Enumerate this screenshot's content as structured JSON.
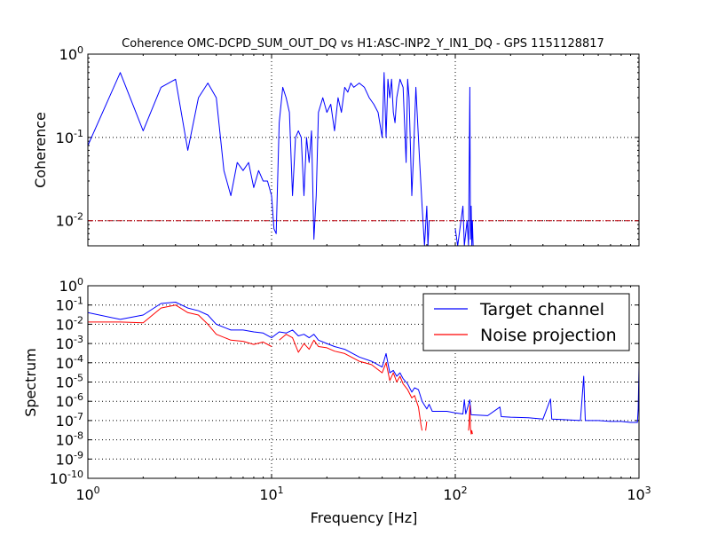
{
  "figure": {
    "title": "Coherence OMC-DCPD_SUM_OUT_DQ vs H1:ASC-INP2_Y_IN1_DQ - GPS 1151128817",
    "xlabel": "Frequency [Hz]"
  },
  "colors": {
    "target": "#0000ff",
    "noise": "#ff0000",
    "threshold": "#c0000c"
  },
  "chart_data": [
    {
      "type": "line",
      "panel": "coherence",
      "ylabel": "Coherence",
      "xscale": "log",
      "yscale": "log",
      "xlim": [
        1,
        1000
      ],
      "ylim": [
        0.005,
        1
      ],
      "grid": true,
      "yticks": [
        {
          "base": "10",
          "exp": "0",
          "v": 1
        },
        {
          "base": "10",
          "exp": "-1",
          "v": 0.1
        },
        {
          "base": "10",
          "exp": "-2",
          "v": 0.01
        }
      ],
      "xticks": [
        1,
        10,
        100,
        1000
      ],
      "threshold": 0.01,
      "series": [
        {
          "color": "#0000ff",
          "segments": [
            [
              [
                1,
                0.08
              ],
              [
                1.5,
                0.6
              ],
              [
                2,
                0.12
              ],
              [
                2.5,
                0.4
              ],
              [
                3,
                0.5
              ],
              [
                3.5,
                0.07
              ],
              [
                4,
                0.3
              ],
              [
                4.5,
                0.45
              ],
              [
                5,
                0.3
              ],
              [
                5.5,
                0.04
              ],
              [
                6,
                0.02
              ],
              [
                6.5,
                0.05
              ],
              [
                7,
                0.04
              ],
              [
                7.5,
                0.05
              ],
              [
                8,
                0.025
              ],
              [
                8.5,
                0.04
              ],
              [
                9,
                0.03
              ],
              [
                9.5,
                0.03
              ],
              [
                10,
                0.02
              ],
              [
                10.3,
                0.008
              ],
              [
                10.6,
                0.007
              ],
              [
                11,
                0.15
              ],
              [
                11.5,
                0.4
              ],
              [
                12,
                0.3
              ],
              [
                12.5,
                0.2
              ],
              [
                13,
                0.02
              ],
              [
                13.5,
                0.1
              ],
              [
                14,
                0.12
              ],
              [
                14.5,
                0.1
              ],
              [
                15,
                0.02
              ],
              [
                15.5,
                0.1
              ],
              [
                16,
                0.05
              ],
              [
                16.5,
                0.12
              ],
              [
                17,
                0.006
              ],
              [
                17.5,
                0.02
              ],
              [
                18,
                0.2
              ],
              [
                19,
                0.3
              ],
              [
                20,
                0.2
              ],
              [
                21,
                0.25
              ],
              [
                22,
                0.12
              ],
              [
                23,
                0.3
              ],
              [
                24,
                0.2
              ],
              [
                25,
                0.4
              ],
              [
                26,
                0.35
              ],
              [
                27,
                0.45
              ],
              [
                28,
                0.4
              ],
              [
                30,
                0.45
              ],
              [
                32,
                0.4
              ],
              [
                34,
                0.3
              ],
              [
                36,
                0.25
              ],
              [
                38,
                0.2
              ],
              [
                40,
                0.1
              ],
              [
                41,
                0.6
              ],
              [
                42,
                0.1
              ],
              [
                43,
                0.5
              ],
              [
                44,
                0.3
              ],
              [
                45,
                0.5
              ],
              [
                46,
                0.2
              ],
              [
                47,
                0.15
              ],
              [
                48,
                0.3
              ],
              [
                50,
                0.5
              ],
              [
                52,
                0.4
              ],
              [
                54,
                0.05
              ],
              [
                55,
                0.5
              ],
              [
                56,
                0.3
              ],
              [
                58,
                0.02
              ],
              [
                59,
                0.05
              ],
              [
                61,
                0.4
              ],
              [
                62,
                0.2
              ],
              [
                64,
                0.05
              ],
              [
                66,
                0.015
              ],
              [
                68,
                0.005
              ],
              [
                70,
                0.015
              ],
              [
                71,
                0.005
              ],
              [
                72,
                0.01
              ]
            ],
            [
              [
                100,
                0.008
              ],
              [
                103,
                0.005
              ],
              [
                110,
                0.015
              ],
              [
                112,
                0.005
              ],
              [
                116,
                0.01
              ],
              [
                118,
                0.005
              ],
              [
                120,
                0.4
              ],
              [
                121,
                0.006
              ],
              [
                122,
                0.015
              ],
              [
                123,
                0.005
              ],
              [
                124,
                0.01
              ],
              [
                125,
                0.005
              ]
            ]
          ]
        }
      ]
    },
    {
      "type": "line",
      "panel": "spectrum",
      "ylabel": "Spectrum",
      "xscale": "log",
      "yscale": "log",
      "xlim": [
        1,
        1000
      ],
      "ylim": [
        1e-10,
        1
      ],
      "grid": true,
      "yticks": [
        {
          "base": "10",
          "exp": "0",
          "v": 1
        },
        {
          "base": "10",
          "exp": "-1",
          "v": 0.1
        },
        {
          "base": "10",
          "exp": "-2",
          "v": 0.01
        },
        {
          "base": "10",
          "exp": "-3",
          "v": 0.001
        },
        {
          "base": "10",
          "exp": "-4",
          "v": 0.0001
        },
        {
          "base": "10",
          "exp": "-5",
          "v": 1e-05
        },
        {
          "base": "10",
          "exp": "-6",
          "v": 1e-06
        },
        {
          "base": "10",
          "exp": "-7",
          "v": 1e-07
        },
        {
          "base": "10",
          "exp": "-8",
          "v": 1e-08
        },
        {
          "base": "10",
          "exp": "-9",
          "v": 1e-09
        },
        {
          "base": "10",
          "exp": "-10",
          "v": 1e-10
        }
      ],
      "xticks": [
        1,
        10,
        100,
        1000
      ],
      "legend": {
        "placement": "upper-right"
      },
      "series": [
        {
          "name": "Target channel",
          "color": "#0000ff",
          "segments": [
            [
              [
                1,
                0.04
              ],
              [
                1.5,
                0.018
              ],
              [
                2,
                0.03
              ],
              [
                2.5,
                0.12
              ],
              [
                3,
                0.14
              ],
              [
                3.5,
                0.07
              ],
              [
                4,
                0.05
              ],
              [
                4.5,
                0.03
              ],
              [
                5,
                0.01
              ],
              [
                6,
                0.005
              ],
              [
                7,
                0.005
              ],
              [
                8,
                0.004
              ],
              [
                9,
                0.0035
              ],
              [
                10,
                0.002
              ],
              [
                11,
                0.004
              ],
              [
                12,
                0.0035
              ],
              [
                13,
                0.005
              ],
              [
                14,
                0.0025
              ],
              [
                15,
                0.003
              ],
              [
                16,
                0.002
              ],
              [
                17,
                0.003
              ],
              [
                18,
                0.0015
              ],
              [
                20,
                0.001
              ],
              [
                22,
                0.0007
              ],
              [
                25,
                0.0005
              ],
              [
                30,
                0.0002
              ],
              [
                35,
                0.00012
              ],
              [
                40,
                6e-05
              ],
              [
                42,
                0.0003
              ],
              [
                44,
                3e-05
              ],
              [
                46,
                4e-05
              ],
              [
                48,
                2e-05
              ],
              [
                50,
                3e-05
              ],
              [
                52,
                1.5e-05
              ],
              [
                55,
                8e-06
              ],
              [
                58,
                3e-06
              ],
              [
                60,
                5e-06
              ],
              [
                63,
                4e-06
              ],
              [
                66,
                1e-06
              ],
              [
                70,
                4e-07
              ],
              [
                72,
                7e-07
              ],
              [
                75,
                3e-07
              ],
              [
                80,
                3e-07
              ],
              [
                90,
                3e-07
              ],
              [
                100,
                2.5e-07
              ],
              [
                110,
                2.2e-07
              ],
              [
                112,
                1.2e-06
              ],
              [
                114,
                2.2e-07
              ],
              [
                120,
                1.2e-06
              ],
              [
                122,
                2e-07
              ],
              [
                150,
                1.8e-07
              ],
              [
                175,
                5e-07
              ],
              [
                178,
                1.6e-07
              ],
              [
                200,
                1.5e-07
              ],
              [
                250,
                1.4e-07
              ],
              [
                300,
                1.2e-07
              ],
              [
                330,
                1.3e-06
              ],
              [
                335,
                1.2e-07
              ],
              [
                400,
                1.1e-07
              ],
              [
                480,
                1e-07
              ],
              [
                500,
                2e-05
              ],
              [
                510,
                1e-07
              ],
              [
                600,
                1e-07
              ],
              [
                700,
                9e-08
              ],
              [
                800,
                9e-08
              ],
              [
                900,
                8e-08
              ],
              [
                980,
                8e-08
              ],
              [
                990,
                4e-07
              ],
              [
                1000,
                7e-05
              ]
            ]
          ]
        },
        {
          "name": "Noise projection",
          "color": "#ff0000",
          "segments": [
            [
              [
                1,
                0.013
              ],
              [
                1.5,
                0.013
              ],
              [
                2,
                0.012
              ],
              [
                2.5,
                0.07
              ],
              [
                3,
                0.1
              ],
              [
                3.5,
                0.04
              ],
              [
                4,
                0.03
              ],
              [
                4.5,
                0.01
              ],
              [
                5,
                0.003
              ],
              [
                6,
                0.0015
              ],
              [
                7,
                0.0013
              ],
              [
                8,
                0.0009
              ],
              [
                9,
                0.0012
              ],
              [
                10,
                0.0007
              ]
            ],
            [
              [
                11,
                0.0015
              ],
              [
                12,
                0.003
              ],
              [
                13,
                0.002
              ],
              [
                14,
                0.00035
              ],
              [
                15,
                0.001
              ],
              [
                16,
                0.0005
              ],
              [
                17,
                0.0015
              ],
              [
                18,
                0.0007
              ],
              [
                20,
                0.0006
              ],
              [
                22,
                0.0004
              ],
              [
                25,
                0.0003
              ],
              [
                30,
                0.00012
              ],
              [
                35,
                8e-05
              ],
              [
                40,
                3e-05
              ],
              [
                42,
                0.0001
              ],
              [
                44,
                1.2e-05
              ],
              [
                46,
                3e-05
              ],
              [
                48,
                1e-05
              ],
              [
                50,
                2e-05
              ],
              [
                52,
                8e-06
              ],
              [
                55,
                4e-06
              ],
              [
                58,
                1.5e-06
              ],
              [
                60,
                2e-06
              ],
              [
                63,
                5e-07
              ],
              [
                65,
                6e-08
              ],
              [
                66,
                3e-08
              ]
            ],
            [
              [
                69,
                3e-08
              ],
              [
                70,
                9e-08
              ]
            ],
            [
              [
                118,
                3e-08
              ],
              [
                119,
                7e-08
              ],
              [
                120,
                6e-07
              ],
              [
                121,
                4e-08
              ],
              [
                122,
                2e-08
              ],
              [
                123,
                3e-08
              ],
              [
                124,
                2e-08
              ]
            ]
          ]
        }
      ]
    }
  ]
}
